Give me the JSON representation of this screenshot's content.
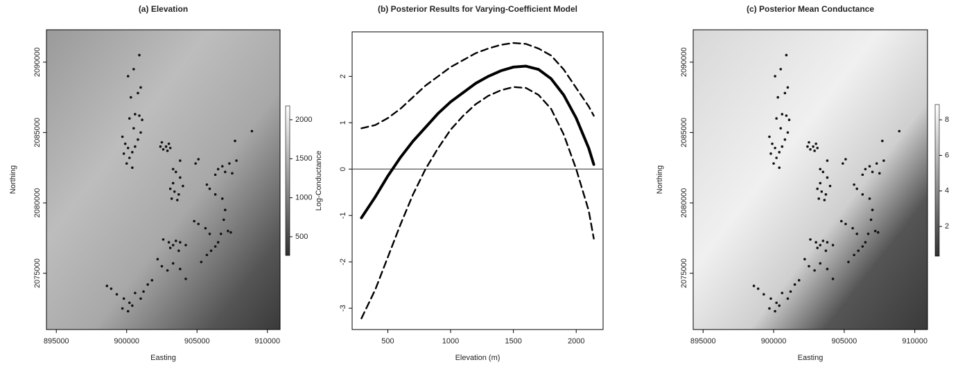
{
  "chart_data": [
    {
      "type": "scatter",
      "title": "(a) Elevation",
      "x_label": "Easting",
      "y_label": "Northing",
      "xlim": [
        894300,
        910900
      ],
      "ylim": [
        2071000,
        2092300
      ],
      "xticks": [
        895000,
        900000,
        905000,
        910000
      ],
      "yticks": [
        2075000,
        2080000,
        2085000,
        2090000
      ],
      "color": "#111111",
      "colorbar": {
        "lim": [
          260,
          2177
        ],
        "ticks": [
          500,
          1000,
          1500,
          2000
        ]
      },
      "x": [
        900100,
        900500,
        900900,
        901000,
        900800,
        900300,
        900600,
        900200,
        900900,
        901100,
        900500,
        901000,
        900800,
        899900,
        900100,
        900400,
        899800,
        900200,
        900600,
        900000,
        900400,
        899700,
        902500,
        902800,
        903000,
        902600,
        902900,
        903100,
        902400,
        903300,
        903800,
        903500,
        903100,
        903400,
        903700,
        903200,
        903600,
        904000,
        903800,
        903300,
        905100,
        904900,
        906500,
        906800,
        907000,
        906300,
        907300,
        907500,
        907700,
        907800,
        908900,
        905700,
        905900,
        906300,
        906800,
        907000,
        906900,
        907200,
        906700,
        907400,
        906500,
        904800,
        905100,
        905600,
        905900,
        902600,
        903000,
        903300,
        903500,
        903800,
        903100,
        903700,
        904200,
        902200,
        902500,
        902900,
        903300,
        903800,
        904200,
        901800,
        901500,
        901200,
        901000,
        900600,
        900200,
        899800,
        899300,
        898900,
        898600,
        899700,
        900100,
        900400,
        905700,
        906000,
        905300,
        906300
      ],
      "y": [
        2089000,
        2089500,
        2090500,
        2088200,
        2087800,
        2087500,
        2086300,
        2086000,
        2086200,
        2085900,
        2085300,
        2085000,
        2084500,
        2084200,
        2083900,
        2083600,
        2083500,
        2083200,
        2084000,
        2082800,
        2082500,
        2084700,
        2084300,
        2084000,
        2084200,
        2083800,
        2083700,
        2083900,
        2084000,
        2082400,
        2083000,
        2082200,
        2081000,
        2080800,
        2080600,
        2080300,
        2080200,
        2081200,
        2081800,
        2081400,
        2083100,
        2082800,
        2082400,
        2082600,
        2082200,
        2082000,
        2082800,
        2082100,
        2084400,
        2083000,
        2085100,
        2081300,
        2081000,
        2080600,
        2080300,
        2079500,
        2078800,
        2078000,
        2077800,
        2077900,
        2077200,
        2078700,
        2078500,
        2078200,
        2077800,
        2077400,
        2077200,
        2077000,
        2077300,
        2077200,
        2076800,
        2076600,
        2077000,
        2076000,
        2075500,
        2075200,
        2075700,
        2075300,
        2074600,
        2074500,
        2074200,
        2073700,
        2073200,
        2073600,
        2072900,
        2073200,
        2073500,
        2073900,
        2074100,
        2072500,
        2072300,
        2072700,
        2076300,
        2076600,
        2075800,
        2076900
      ]
    },
    {
      "type": "line",
      "title": "(b) Posterior Results for Varying-Coefficient Model",
      "x_label": "Elevation (m)",
      "y_label": "Log-Conductance",
      "xlim": [
        216,
        2214
      ],
      "ylim": [
        -3.46,
        2.96
      ],
      "xticks": [
        500,
        1000,
        1500,
        2000
      ],
      "yticks": [
        -3,
        -2,
        -1,
        0,
        1,
        2
      ],
      "hline": 0,
      "x": [
        290,
        400,
        500,
        600,
        700,
        800,
        900,
        1000,
        1100,
        1200,
        1300,
        1400,
        1500,
        1600,
        1700,
        1800,
        1900,
        2000,
        2100,
        2140
      ],
      "series": [
        {
          "color": "#000000",
          "dashed": false,
          "values": [
            -1.05,
            -0.6,
            -0.15,
            0.25,
            0.6,
            0.9,
            1.2,
            1.45,
            1.65,
            1.85,
            2.0,
            2.12,
            2.2,
            2.22,
            2.15,
            1.95,
            1.6,
            1.1,
            0.45,
            0.1
          ]
        },
        {
          "color": "#000000",
          "dashed": true,
          "values": [
            0.88,
            0.95,
            1.1,
            1.3,
            1.55,
            1.8,
            2.0,
            2.2,
            2.35,
            2.5,
            2.6,
            2.68,
            2.72,
            2.7,
            2.6,
            2.45,
            2.15,
            1.75,
            1.35,
            1.15
          ]
        },
        {
          "color": "#000000",
          "dashed": true,
          "values": [
            -3.22,
            -2.6,
            -1.9,
            -1.2,
            -0.55,
            0.0,
            0.45,
            0.85,
            1.15,
            1.4,
            1.58,
            1.7,
            1.77,
            1.75,
            1.6,
            1.3,
            0.75,
            0.0,
            -0.9,
            -1.5
          ]
        }
      ]
    },
    {
      "type": "scatter",
      "title": "(c) Posterior Mean Conductance",
      "x_label": "Easting",
      "y_label": "Northing",
      "xlim": [
        894300,
        910900
      ],
      "ylim": [
        2071000,
        2092300
      ],
      "xticks": [
        895000,
        900000,
        905000,
        910000
      ],
      "yticks": [
        2075000,
        2080000,
        2085000,
        2090000
      ],
      "color": "#111111",
      "colorbar": {
        "lim": [
          0.33,
          8.86
        ],
        "ticks": [
          2,
          4,
          6,
          8
        ]
      },
      "x": [
        900100,
        900500,
        900900,
        901000,
        900800,
        900300,
        900600,
        900200,
        900900,
        901100,
        900500,
        901000,
        900800,
        899900,
        900100,
        900400,
        899800,
        900200,
        900600,
        900000,
        900400,
        899700,
        902500,
        902800,
        903000,
        902600,
        902900,
        903100,
        902400,
        903300,
        903800,
        903500,
        903100,
        903400,
        903700,
        903200,
        903600,
        904000,
        903800,
        903300,
        905100,
        904900,
        906500,
        906800,
        907000,
        906300,
        907300,
        907500,
        907700,
        907800,
        908900,
        905700,
        905900,
        906300,
        906800,
        907000,
        906900,
        907200,
        906700,
        907400,
        906500,
        904800,
        905100,
        905600,
        905900,
        902600,
        903000,
        903300,
        903500,
        903800,
        903100,
        903700,
        904200,
        902200,
        902500,
        902900,
        903300,
        903800,
        904200,
        901800,
        901500,
        901200,
        901000,
        900600,
        900200,
        899800,
        899300,
        898900,
        898600,
        899700,
        900100,
        900400,
        905700,
        906000,
        905300,
        906300
      ],
      "y": [
        2089000,
        2089500,
        2090500,
        2088200,
        2087800,
        2087500,
        2086300,
        2086000,
        2086200,
        2085900,
        2085300,
        2085000,
        2084500,
        2084200,
        2083900,
        2083600,
        2083500,
        2083200,
        2084000,
        2082800,
        2082500,
        2084700,
        2084300,
        2084000,
        2084200,
        2083800,
        2083700,
        2083900,
        2084000,
        2082400,
        2083000,
        2082200,
        2081000,
        2080800,
        2080600,
        2080300,
        2080200,
        2081200,
        2081800,
        2081400,
        2083100,
        2082800,
        2082400,
        2082600,
        2082200,
        2082000,
        2082800,
        2082100,
        2084400,
        2083000,
        2085100,
        2081300,
        2081000,
        2080600,
        2080300,
        2079500,
        2078800,
        2078000,
        2077800,
        2077900,
        2077200,
        2078700,
        2078500,
        2078200,
        2077800,
        2077400,
        2077200,
        2077000,
        2077300,
        2077200,
        2076800,
        2076600,
        2077000,
        2076000,
        2075500,
        2075200,
        2075700,
        2075300,
        2074600,
        2074500,
        2074200,
        2073700,
        2073200,
        2073600,
        2072900,
        2073200,
        2073500,
        2073900,
        2074100,
        2072500,
        2072300,
        2072700,
        2076300,
        2076600,
        2075800,
        2076900
      ]
    }
  ]
}
